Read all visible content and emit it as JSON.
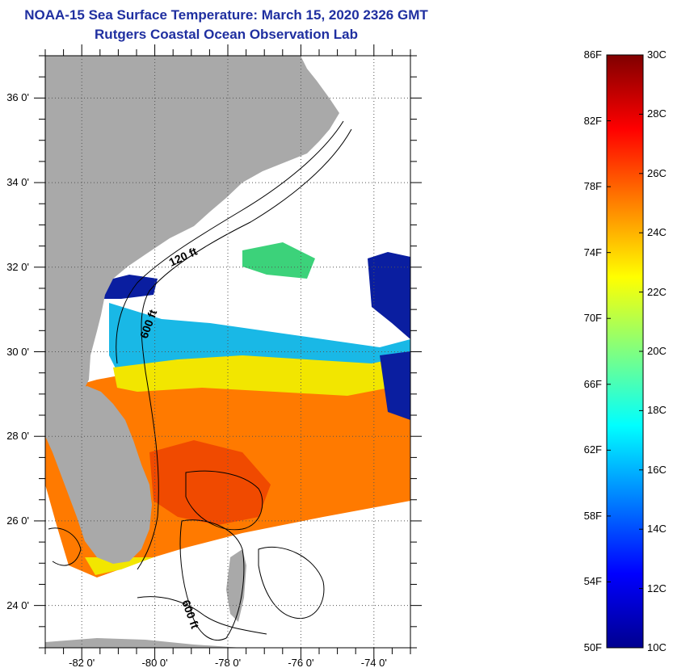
{
  "title_line1": "NOAA-15 Sea Surface Temperature:  March 15, 2020 2326 GMT",
  "title_line2": "Rutgers Coastal Ocean Observation Lab",
  "map": {
    "lat_ticks": [
      {
        "label": "36 0'",
        "value": 36
      },
      {
        "label": "34 0'",
        "value": 34
      },
      {
        "label": "32 0'",
        "value": 32
      },
      {
        "label": "30 0'",
        "value": 30
      },
      {
        "label": "28 0'",
        "value": 28
      },
      {
        "label": "26 0'",
        "value": 26
      },
      {
        "label": "24 0'",
        "value": 24
      }
    ],
    "lon_ticks": [
      {
        "label": "-82 0'",
        "value": -82
      },
      {
        "label": "-80 0'",
        "value": -80
      },
      {
        "label": "-78 0'",
        "value": -78
      },
      {
        "label": "-76 0'",
        "value": -76
      },
      {
        "label": "-74 0'",
        "value": -74
      }
    ],
    "lat_range": [
      23,
      37
    ],
    "lon_range": [
      -83,
      -73
    ],
    "contour_labels": [
      "120 ft",
      "600 ft",
      "600 ft"
    ],
    "colors": {
      "land": "#a9a9a9",
      "cloud": "#ffffff",
      "warm": "#ff7a00",
      "hot": "#f04a00",
      "yellow": "#f2e600",
      "cool_green": "#3cd27a",
      "cyan": "#19b8e6",
      "blue": "#1a5be0",
      "deep_blue": "#0a1ea0"
    }
  },
  "colorbar": {
    "f_labels": [
      "86F",
      "82F",
      "78F",
      "74F",
      "70F",
      "66F",
      "62F",
      "58F",
      "54F",
      "50F"
    ],
    "c_labels": [
      "30C",
      "28C",
      "26C",
      "24C",
      "22C",
      "20C",
      "18C",
      "16C",
      "14C",
      "12C",
      "10C"
    ],
    "f_range": [
      50,
      86
    ],
    "c_range": [
      10,
      30
    ],
    "stops": [
      "#00008f",
      "#0000ff",
      "#0080ff",
      "#00ffff",
      "#80ff80",
      "#ffff00",
      "#ff8000",
      "#ff0000",
      "#800000"
    ]
  }
}
